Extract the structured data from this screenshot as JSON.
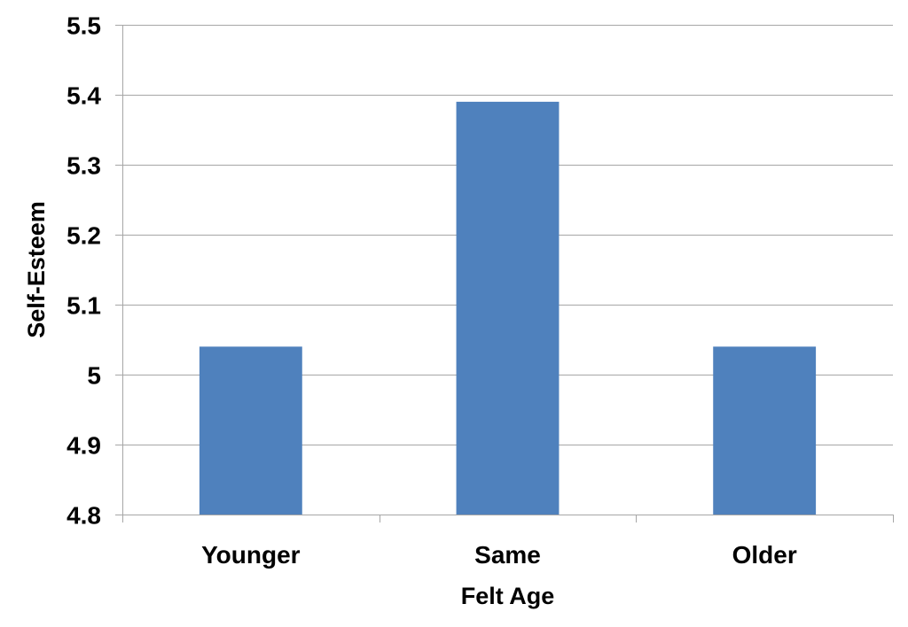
{
  "chart_data": {
    "type": "bar",
    "categories": [
      "Younger",
      "Same",
      "Older"
    ],
    "values": [
      5.04,
      5.39,
      5.04
    ],
    "xlabel": "Felt Age",
    "ylabel": "Self-Esteem",
    "ylim": [
      4.8,
      5.5
    ],
    "yticks": [
      "4.8",
      "4.9",
      "5",
      "5.1",
      "5.2",
      "5.3",
      "5.4",
      "5.5"
    ],
    "grid": true,
    "bar_color": "#4f81bd",
    "grid_color": "#a6a6a6"
  }
}
